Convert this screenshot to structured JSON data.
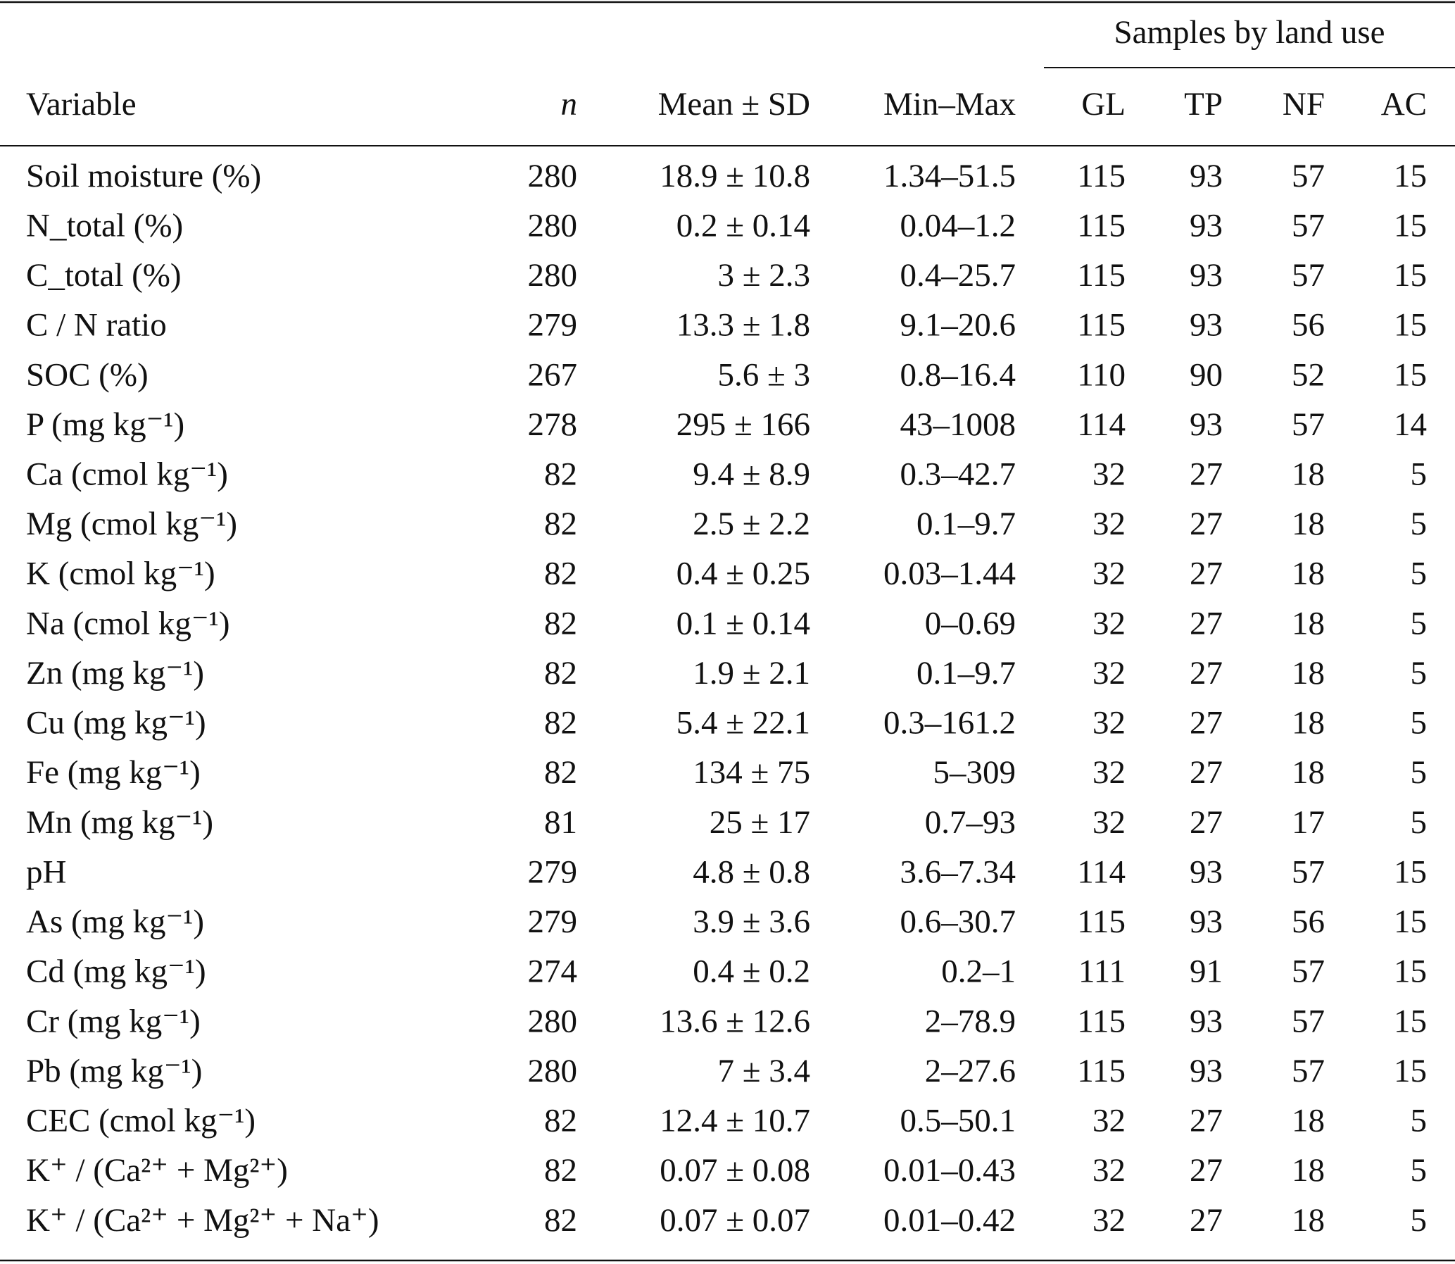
{
  "table": {
    "group_header": "Samples by land use",
    "columns": [
      "Variable",
      "n",
      "Mean ± SD",
      "Min–Max",
      "GL",
      "TP",
      "NF",
      "AC"
    ],
    "rows": [
      [
        "Soil moisture (%)",
        "280",
        "18.9 ± 10.8",
        "1.34–51.5",
        "115",
        "93",
        "57",
        "15"
      ],
      [
        "N_total (%)",
        "280",
        "0.2 ± 0.14",
        "0.04–1.2",
        "115",
        "93",
        "57",
        "15"
      ],
      [
        "C_total (%)",
        "280",
        "3 ± 2.3",
        "0.4–25.7",
        "115",
        "93",
        "57",
        "15"
      ],
      [
        "C / N ratio",
        "279",
        "13.3 ± 1.8",
        "9.1–20.6",
        "115",
        "93",
        "56",
        "15"
      ],
      [
        "SOC (%)",
        "267",
        "5.6 ± 3",
        "0.8–16.4",
        "110",
        "90",
        "52",
        "15"
      ],
      [
        "P (mg kg⁻¹)",
        "278",
        "295 ± 166",
        "43–1008",
        "114",
        "93",
        "57",
        "14"
      ],
      [
        "Ca (cmol kg⁻¹)",
        "82",
        "9.4 ± 8.9",
        "0.3–42.7",
        "32",
        "27",
        "18",
        "5"
      ],
      [
        "Mg (cmol kg⁻¹)",
        "82",
        "2.5 ± 2.2",
        "0.1–9.7",
        "32",
        "27",
        "18",
        "5"
      ],
      [
        "K (cmol kg⁻¹)",
        "82",
        "0.4 ± 0.25",
        "0.03–1.44",
        "32",
        "27",
        "18",
        "5"
      ],
      [
        "Na (cmol kg⁻¹)",
        "82",
        "0.1 ± 0.14",
        "0–0.69",
        "32",
        "27",
        "18",
        "5"
      ],
      [
        "Zn (mg kg⁻¹)",
        "82",
        "1.9 ± 2.1",
        "0.1–9.7",
        "32",
        "27",
        "18",
        "5"
      ],
      [
        "Cu (mg kg⁻¹)",
        "82",
        "5.4 ± 22.1",
        "0.3–161.2",
        "32",
        "27",
        "18",
        "5"
      ],
      [
        "Fe (mg kg⁻¹)",
        "82",
        "134 ± 75",
        "5–309",
        "32",
        "27",
        "18",
        "5"
      ],
      [
        "Mn (mg kg⁻¹)",
        "81",
        "25 ± 17",
        "0.7–93",
        "32",
        "27",
        "17",
        "5"
      ],
      [
        "pH",
        "279",
        "4.8 ± 0.8",
        "3.6–7.34",
        "114",
        "93",
        "57",
        "15"
      ],
      [
        "As (mg kg⁻¹)",
        "279",
        "3.9 ± 3.6",
        "0.6–30.7",
        "115",
        "93",
        "56",
        "15"
      ],
      [
        "Cd (mg kg⁻¹)",
        "274",
        "0.4 ± 0.2",
        "0.2–1",
        "111",
        "91",
        "57",
        "15"
      ],
      [
        "Cr (mg kg⁻¹)",
        "280",
        "13.6 ± 12.6",
        "2–78.9",
        "115",
        "93",
        "57",
        "15"
      ],
      [
        "Pb (mg kg⁻¹)",
        "280",
        "7 ± 3.4",
        "2–27.6",
        "115",
        "93",
        "57",
        "15"
      ],
      [
        "CEC (cmol kg⁻¹)",
        "82",
        "12.4 ± 10.7",
        "0.5–50.1",
        "32",
        "27",
        "18",
        "5"
      ],
      [
        "K⁺ / (Ca²⁺ + Mg²⁺)",
        "82",
        "0.07 ± 0.08",
        "0.01–0.43",
        "32",
        "27",
        "18",
        "5"
      ],
      [
        "K⁺ / (Ca²⁺ + Mg²⁺ + Na⁺)",
        "82",
        "0.07 ± 0.07",
        "0.01–0.42",
        "32",
        "27",
        "18",
        "5"
      ]
    ]
  }
}
